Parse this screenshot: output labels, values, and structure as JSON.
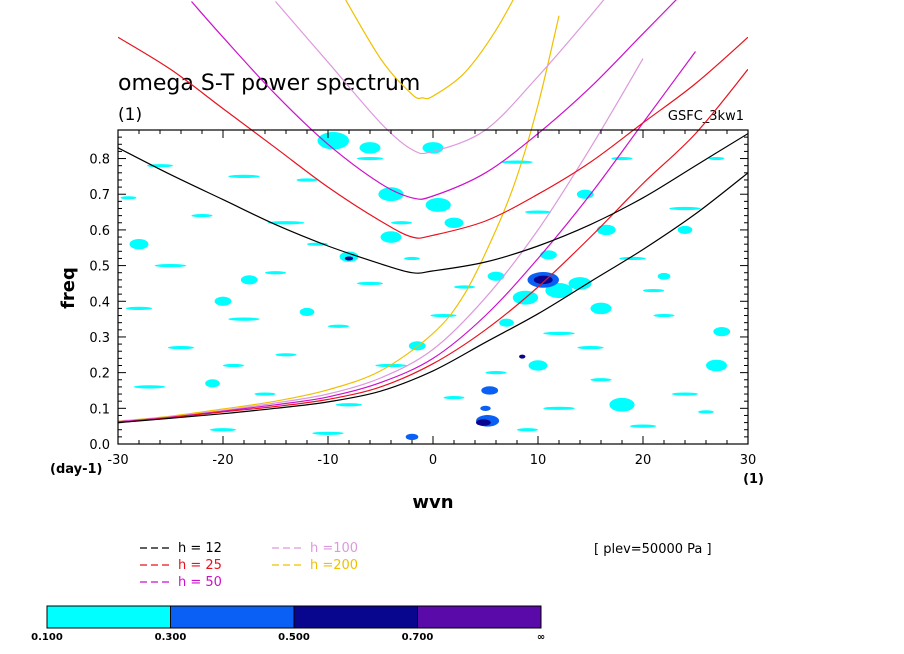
{
  "chart_data": {
    "type": "line",
    "title": "omega S-T power spectrum",
    "subtitle": "(1)",
    "model_label": "GSFC_3kw1",
    "xlabel": "wvn",
    "x_unit": "(1)",
    "ylabel": "freq",
    "y_unit": "(day-1)",
    "xlim": [
      -30,
      30
    ],
    "ylim": [
      0.0,
      0.88
    ],
    "x_ticks": [
      -30,
      -20,
      -10,
      0,
      10,
      20,
      30
    ],
    "x_tick_labels": [
      "-30",
      "-20",
      "-10",
      "0",
      "10",
      "20",
      "30"
    ],
    "y_ticks": [
      0.0,
      0.1,
      0.2,
      0.3,
      0.4,
      0.5,
      0.6,
      0.7,
      0.8
    ],
    "y_tick_labels": [
      "0.0",
      "0.1",
      "0.2",
      "0.3",
      "0.4",
      "0.5",
      "0.6",
      "0.7",
      "0.8"
    ],
    "level_note": "[ plev=50000 Pa ]",
    "series": [
      {
        "name": "h = 12",
        "color": "#000000",
        "branches": [
          {
            "x": [
              -30,
              -25,
              -20,
              -15,
              -10,
              -5,
              -2,
              0,
              5,
              10,
              15,
              20,
              25,
              30
            ],
            "y": [
              0.83,
              0.755,
              0.685,
              0.615,
              0.555,
              0.505,
              0.48,
              0.485,
              0.51,
              0.555,
              0.615,
              0.69,
              0.78,
              0.87
            ]
          },
          {
            "x": [
              -30,
              -25,
              -20,
              -15,
              -10,
              -5,
              0,
              5,
              10,
              15,
              20,
              25,
              30
            ],
            "y": [
              0.06,
              0.072,
              0.085,
              0.1,
              0.118,
              0.148,
              0.205,
              0.285,
              0.365,
              0.455,
              0.545,
              0.645,
              0.76
            ]
          }
        ]
      },
      {
        "name": "h = 25",
        "color": "#e8121e",
        "branches": [
          {
            "x": [
              -30,
              -25,
              -20,
              -15,
              -10,
              -5,
              -2,
              0,
              5,
              10,
              15,
              20,
              25,
              30
            ],
            "y": [
              1.14,
              1.05,
              0.94,
              0.83,
              0.72,
              0.625,
              0.58,
              0.585,
              0.625,
              0.7,
              0.79,
              0.9,
              1.01,
              1.14
            ]
          },
          {
            "x": [
              -30,
              -25,
              -20,
              -15,
              -10,
              -5,
              0,
              5,
              10,
              15,
              20,
              25,
              30
            ],
            "y": [
              0.06,
              0.074,
              0.09,
              0.105,
              0.125,
              0.16,
              0.225,
              0.32,
              0.44,
              0.58,
              0.73,
              0.87,
              1.05
            ]
          }
        ]
      },
      {
        "name": "h = 50",
        "color": "#cc11cc",
        "branches": [
          {
            "x": [
              -23,
              -20,
              -15,
              -10,
              -5,
              -2,
              0,
              5,
              10,
              15,
              20,
              25
            ],
            "y": [
              1.24,
              1.14,
              0.98,
              0.84,
              0.73,
              0.69,
              0.695,
              0.76,
              0.87,
              1.0,
              1.15,
              1.3
            ]
          },
          {
            "x": [
              -30,
              -25,
              -20,
              -15,
              -10,
              -5,
              0,
              5,
              10,
              15,
              20,
              25
            ],
            "y": [
              0.062,
              0.075,
              0.092,
              0.11,
              0.132,
              0.172,
              0.24,
              0.36,
              0.52,
              0.7,
              0.9,
              1.1
            ]
          }
        ]
      },
      {
        "name": "h =100",
        "color": "#dd99dd",
        "branches": [
          {
            "x": [
              -15,
              -10,
              -5,
              -2,
              0,
              5,
              10,
              15,
              20
            ],
            "y": [
              1.24,
              1.07,
              0.9,
              0.825,
              0.82,
              0.88,
              1.03,
              1.2,
              1.38
            ]
          },
          {
            "x": [
              -30,
              -25,
              -20,
              -15,
              -10,
              -5,
              0,
              5,
              10,
              15,
              20
            ],
            "y": [
              0.063,
              0.076,
              0.094,
              0.115,
              0.14,
              0.185,
              0.265,
              0.41,
              0.6,
              0.83,
              1.08
            ]
          }
        ]
      },
      {
        "name": "h =200",
        "color": "#f0c000",
        "branches": [
          {
            "x": [
              -9,
              -5,
              -2,
              -1,
              0,
              3,
              6,
              9
            ],
            "y": [
              1.28,
              1.08,
              0.98,
              0.97,
              0.975,
              1.04,
              1.16,
              1.32
            ]
          },
          {
            "x": [
              -30,
              -25,
              -20,
              -15,
              -10,
              -5,
              0,
              3,
              6,
              8,
              10,
              12
            ],
            "y": [
              0.064,
              0.078,
              0.098,
              0.12,
              0.152,
              0.205,
              0.31,
              0.42,
              0.6,
              0.75,
              0.95,
              1.2
            ]
          }
        ]
      }
    ],
    "colorbar": {
      "levels": [
        "0.100",
        "0.300",
        "0.500",
        "0.700",
        "∞"
      ],
      "colors": [
        "#00ffff",
        "#0a5ff5",
        "#08058f",
        "#5a0aa8"
      ]
    },
    "blobs": [
      {
        "x": 4.8,
        "y": 0.06,
        "r": 0.7,
        "l": 2
      },
      {
        "x": 5.2,
        "y": 0.065,
        "r": 1.1,
        "l": 1
      },
      {
        "x": 5.0,
        "y": 0.1,
        "r": 0.5,
        "l": 1
      },
      {
        "x": 5.4,
        "y": 0.15,
        "r": 0.8,
        "l": 1
      },
      {
        "x": 10.5,
        "y": 0.46,
        "r": 0.9,
        "l": 2
      },
      {
        "x": 10.5,
        "y": 0.46,
        "r": 1.5,
        "l": 1
      },
      {
        "x": 8.5,
        "y": 0.245,
        "r": 0.3,
        "l": 2
      },
      {
        "x": -8,
        "y": 0.52,
        "r": 0.4,
        "l": 2
      },
      {
        "x": -8,
        "y": 0.525,
        "r": 0.9,
        "l": 0
      },
      {
        "x": 12,
        "y": 0.43,
        "r": 1.3,
        "l": 0
      },
      {
        "x": 8.8,
        "y": 0.41,
        "r": 1.2,
        "l": 0
      },
      {
        "x": 16,
        "y": 0.38,
        "r": 1.0,
        "l": 0
      },
      {
        "x": 14,
        "y": 0.45,
        "r": 1.1,
        "l": 0
      },
      {
        "x": 7,
        "y": 0.34,
        "r": 0.7,
        "l": 0
      },
      {
        "x": 0.5,
        "y": 0.67,
        "r": 1.2,
        "l": 0
      },
      {
        "x": 2,
        "y": 0.62,
        "r": 0.9,
        "l": 0
      },
      {
        "x": -4,
        "y": 0.58,
        "r": 1.0,
        "l": 0
      },
      {
        "x": -1.5,
        "y": 0.275,
        "r": 0.8,
        "l": 0
      },
      {
        "x": -4,
        "y": 0.7,
        "r": 1.2,
        "l": 0
      },
      {
        "x": -9.5,
        "y": 0.85,
        "r": 1.5,
        "l": 0
      },
      {
        "x": -6,
        "y": 0.83,
        "r": 1.0,
        "l": 0
      },
      {
        "x": 0,
        "y": 0.83,
        "r": 1.0,
        "l": 0
      },
      {
        "x": -28,
        "y": 0.56,
        "r": 0.9,
        "l": 0
      },
      {
        "x": -17.5,
        "y": 0.46,
        "r": 0.8,
        "l": 0
      },
      {
        "x": 18,
        "y": 0.11,
        "r": 1.2,
        "l": 0
      },
      {
        "x": 27,
        "y": 0.22,
        "r": 1.0,
        "l": 0
      },
      {
        "x": 27.5,
        "y": 0.315,
        "r": 0.8,
        "l": 0
      },
      {
        "x": 16.5,
        "y": 0.6,
        "r": 0.9,
        "l": 0
      },
      {
        "x": 14.5,
        "y": 0.7,
        "r": 0.8,
        "l": 0
      },
      {
        "x": -21,
        "y": 0.17,
        "r": 0.7,
        "l": 0
      },
      {
        "x": -20,
        "y": 0.4,
        "r": 0.8,
        "l": 0
      },
      {
        "x": 10,
        "y": 0.22,
        "r": 0.9,
        "l": 0
      },
      {
        "x": 6,
        "y": 0.47,
        "r": 0.8,
        "l": 0
      },
      {
        "x": 11,
        "y": 0.53,
        "r": 0.8,
        "l": 0
      },
      {
        "x": -12,
        "y": 0.37,
        "r": 0.7,
        "l": 0
      },
      {
        "x": -2,
        "y": 0.02,
        "r": 0.6,
        "l": 1
      },
      {
        "x": 22,
        "y": 0.47,
        "r": 0.6,
        "l": 0
      },
      {
        "x": 24,
        "y": 0.6,
        "r": 0.7,
        "l": 0
      }
    ],
    "dashes": [
      [
        -26,
        0.78,
        2.5
      ],
      [
        -18,
        0.75,
        3.0
      ],
      [
        -12,
        0.74,
        2.0
      ],
      [
        -6,
        0.8,
        2.5
      ],
      [
        8,
        0.79,
        3.0
      ],
      [
        18,
        0.8,
        2.0
      ],
      [
        -22,
        0.64,
        2.0
      ],
      [
        -14,
        0.62,
        3.5
      ],
      [
        -3,
        0.62,
        2.0
      ],
      [
        10,
        0.65,
        2.5
      ],
      [
        24,
        0.66,
        3.0
      ],
      [
        -25,
        0.5,
        3.0
      ],
      [
        -15,
        0.48,
        2.0
      ],
      [
        -6,
        0.45,
        2.5
      ],
      [
        3,
        0.44,
        2.0
      ],
      [
        19,
        0.52,
        2.5
      ],
      [
        -28,
        0.38,
        2.5
      ],
      [
        -18,
        0.35,
        3.0
      ],
      [
        -9,
        0.33,
        2.0
      ],
      [
        1,
        0.36,
        2.5
      ],
      [
        12,
        0.31,
        3.0
      ],
      [
        22,
        0.36,
        2.0
      ],
      [
        -24,
        0.27,
        2.5
      ],
      [
        -14,
        0.25,
        2.0
      ],
      [
        -4,
        0.22,
        3.0
      ],
      [
        6,
        0.2,
        2.0
      ],
      [
        15,
        0.27,
        2.5
      ],
      [
        -27,
        0.16,
        3.0
      ],
      [
        -16,
        0.14,
        2.0
      ],
      [
        -8,
        0.11,
        2.5
      ],
      [
        2,
        0.13,
        2.0
      ],
      [
        12,
        0.1,
        3.0
      ],
      [
        24,
        0.14,
        2.5
      ],
      [
        -20,
        0.04,
        2.5
      ],
      [
        -10,
        0.03,
        3.0
      ],
      [
        9,
        0.04,
        2.0
      ],
      [
        20,
        0.05,
        2.5
      ],
      [
        -29,
        0.69,
        1.5
      ],
      [
        27,
        0.8,
        1.5
      ],
      [
        -11,
        0.56,
        2.0
      ],
      [
        21,
        0.43,
        2.0
      ],
      [
        -2,
        0.52,
        1.5
      ],
      [
        16,
        0.18,
        2.0
      ],
      [
        -19,
        0.22,
        2.0
      ],
      [
        26,
        0.09,
        1.5
      ]
    ]
  }
}
